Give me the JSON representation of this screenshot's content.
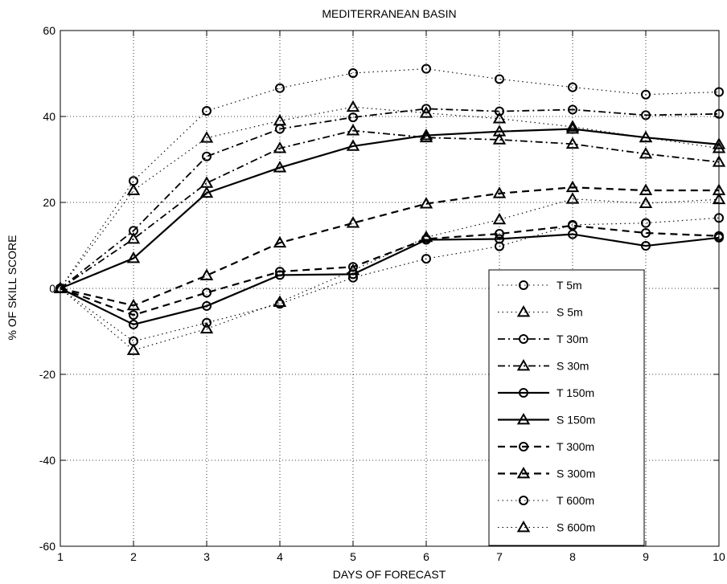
{
  "chart_data": {
    "type": "line",
    "title": "MEDITERRANEAN BASIN",
    "xlabel": "DAYS OF FORECAST",
    "ylabel": "% OF SKILL SCORE",
    "xlim": [
      1,
      10
    ],
    "ylim": [
      -60,
      60
    ],
    "xticks": [
      1,
      2,
      3,
      4,
      5,
      6,
      7,
      8,
      9,
      10
    ],
    "yticks": [
      -60,
      -40,
      -20,
      0,
      20,
      40,
      60
    ],
    "grid": true,
    "legend_position": "bottom-right",
    "x": [
      1,
      2,
      3,
      4,
      5,
      6,
      7,
      8,
      9,
      10
    ],
    "series": [
      {
        "name": "T 5m",
        "style": "dotted",
        "marker": "circle",
        "values": [
          0,
          25,
          41.3,
          46.6,
          50.1,
          51.1,
          48.7,
          46.8,
          45.1,
          45.7
        ]
      },
      {
        "name": "S 5m",
        "style": "dotted",
        "marker": "triangle",
        "values": [
          0,
          22.8,
          35,
          39,
          42.2,
          40.8,
          39.5,
          37.6,
          35.1,
          32.6
        ]
      },
      {
        "name": "T 30m",
        "style": "dashdot",
        "marker": "circle",
        "values": [
          0,
          13.4,
          30.7,
          37.1,
          39.8,
          41.8,
          41.2,
          41.6,
          40.3,
          40.6
        ]
      },
      {
        "name": "S 30m",
        "style": "dashdot",
        "marker": "triangle",
        "values": [
          0,
          11.5,
          24.5,
          32.6,
          36.7,
          35.1,
          34.6,
          33.6,
          31.3,
          29.4
        ]
      },
      {
        "name": "T 150m",
        "style": "solid",
        "marker": "circle",
        "values": [
          0,
          -8.4,
          -4.1,
          3.1,
          3.3,
          11.3,
          11.5,
          12.6,
          9.9,
          11.8
        ]
      },
      {
        "name": "S 150m",
        "style": "solid",
        "marker": "triangle",
        "values": [
          0,
          7,
          22.2,
          28.1,
          33.1,
          35.6,
          36.5,
          37.1,
          35.1,
          33.5
        ]
      },
      {
        "name": "T 300m",
        "style": "dashed",
        "marker": "circle",
        "values": [
          0,
          -6.2,
          -1,
          3.9,
          5,
          11.5,
          12.7,
          14.6,
          12.9,
          12.2
        ]
      },
      {
        "name": "S 300m",
        "style": "dashed",
        "marker": "triangle",
        "values": [
          0,
          -4,
          3,
          10.6,
          15.2,
          19.7,
          22.1,
          23.5,
          22.8,
          22.8
        ]
      },
      {
        "name": "T 600m",
        "style": "dotted",
        "marker": "circle",
        "values": [
          0,
          -12.3,
          -8,
          -3.6,
          2.5,
          6.9,
          9.8,
          14.8,
          15.2,
          16.4
        ]
      },
      {
        "name": "S 600m",
        "style": "dotted",
        "marker": "triangle",
        "values": [
          0,
          -14.4,
          -9.4,
          -3.2,
          4.2,
          11.9,
          16,
          20.8,
          19.8,
          20.7
        ]
      }
    ]
  }
}
